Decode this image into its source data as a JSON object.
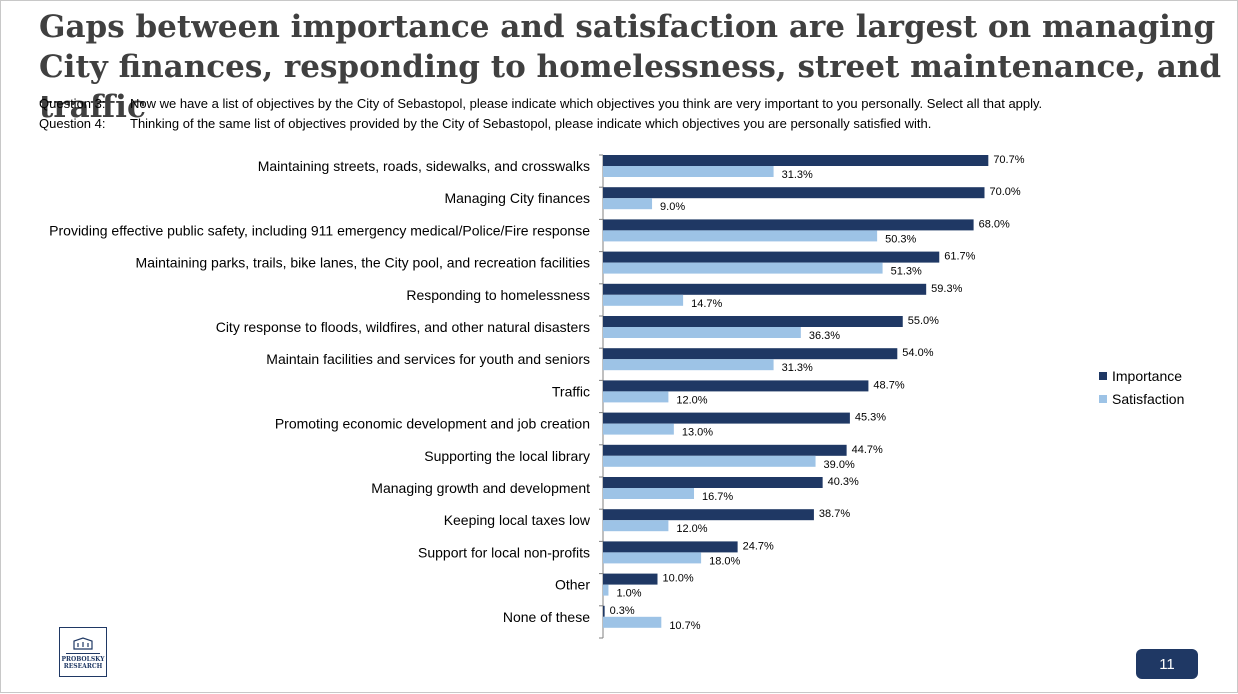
{
  "title": "Gaps between importance and satisfaction are largest on managing City finances, responding to homelessness, street maintenance, and traffic",
  "questions": [
    {
      "label": "Question 3:",
      "text": "Now we have a list of objectives by the City of Sebastopol, please indicate which objectives you think are very important to you personally. Select all that apply."
    },
    {
      "label": "Question 4:",
      "text": "Thinking of the same list of objectives provided by the City of Sebastopol, please indicate which objectives you are personally satisfied with."
    }
  ],
  "logo": {
    "text_line1": "PROBOLSKY",
    "text_line2": "RESEARCH"
  },
  "page_number": "11",
  "colors": {
    "importance": "#1f3864",
    "satisfaction": "#9dc3e6"
  },
  "chart_data": {
    "type": "bar",
    "orientation": "horizontal",
    "title": "",
    "xlabel": "",
    "ylabel": "",
    "xlim": [
      0,
      100
    ],
    "grid": false,
    "legend_position": "right",
    "categories": [
      "Maintaining streets, roads, sidewalks, and crosswalks",
      "Managing City finances",
      "Providing effective public safety, including 911 emergency medical/Police/Fire response",
      "Maintaining parks, trails, bike lanes, the City pool, and recreation facilities",
      "Responding to homelessness",
      "City response to floods, wildfires, and other natural disasters",
      "Maintain facilities and services for youth and seniors",
      "Traffic",
      "Promoting economic development and job creation",
      "Supporting the local library",
      "Managing growth and development",
      "Keeping local taxes low",
      "Support for local non-profits",
      "Other",
      "None of these"
    ],
    "series": [
      {
        "name": "Importance",
        "values": [
          70.7,
          70.0,
          68.0,
          61.7,
          59.3,
          55.0,
          54.0,
          48.7,
          45.3,
          44.7,
          40.3,
          38.7,
          24.7,
          10.0,
          0.3
        ],
        "labels": [
          "70.7%",
          "70.0%",
          "68.0%",
          "61.7%",
          "59.3%",
          "55.0%",
          "54.0%",
          "48.7%",
          "45.3%",
          "44.7%",
          "40.3%",
          "38.7%",
          "24.7%",
          "10.0%",
          "0.3%"
        ]
      },
      {
        "name": "Satisfaction",
        "values": [
          31.3,
          9.0,
          50.3,
          51.3,
          14.7,
          36.3,
          31.3,
          12.0,
          13.0,
          39.0,
          16.7,
          12.0,
          18.0,
          1.0,
          10.7
        ],
        "labels": [
          "31.3%",
          "9.0%",
          "50.3%",
          "51.3%",
          "14.7%",
          "36.3%",
          "31.3%",
          "12.0%",
          "13.0%",
          "39.0%",
          "16.7%",
          "12.0%",
          "18.0%",
          "1.0%",
          "10.7%"
        ]
      }
    ]
  }
}
